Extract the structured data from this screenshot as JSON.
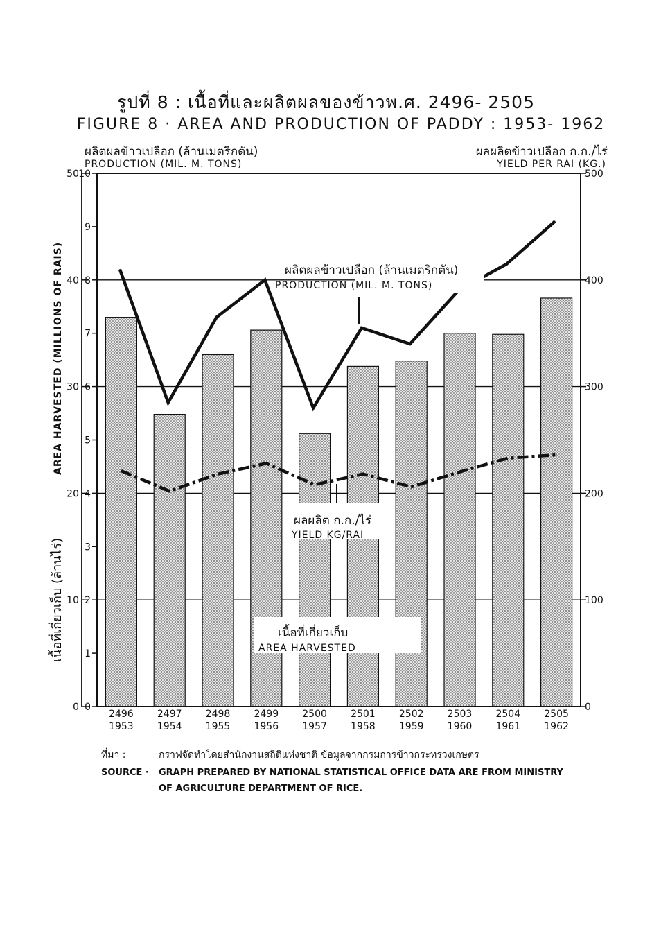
{
  "chart_data": {
    "type": "bar",
    "title": "รูปที่ 8 : เนื้อที่และผลิตผลของข้าวพ.ศ. 2496- 2505",
    "subtitle": "FIGURE 8 · AREA AND PRODUCTION OF PADDY : 1953- 1962",
    "categories": [
      {
        "be": "2496",
        "ad": "1953"
      },
      {
        "be": "2497",
        "ad": "1954"
      },
      {
        "be": "2498",
        "ad": "1955"
      },
      {
        "be": "2499",
        "ad": "1956"
      },
      {
        "be": "2500",
        "ad": "1957"
      },
      {
        "be": "2501",
        "ad": "1958"
      },
      {
        "be": "2502",
        "ad": "1959"
      },
      {
        "be": "2503",
        "ad": "1960"
      },
      {
        "be": "2504",
        "ad": "1961"
      },
      {
        "be": "2505",
        "ad": "1962"
      }
    ],
    "left_axis_area": {
      "label_th": "เนื้อที่เกี่ยวเก็บ (ล้านไร่)",
      "label_en": "AREA HARVESTED (MILLIONS OF RAIS)",
      "ylim": [
        0,
        50
      ],
      "ticks": [
        "0",
        "10",
        "20",
        "30",
        "40",
        "50"
      ]
    },
    "left_axis_production": {
      "label_th": "ผลิตผลข้าวเปลือก (ล้านเมตริกตัน)",
      "label_en": "PRODUCTION (MIL. M. TONS)",
      "ylim": [
        0,
        10
      ],
      "ticks": [
        "0",
        "1",
        "2",
        "3",
        "4",
        "5",
        "6",
        "7",
        "8",
        "9",
        "10"
      ]
    },
    "right_axis_yield": {
      "label_th": "ผลผลิตข้าวเปลือก ก.ก./ไร่",
      "label_en": "YIELD PER RAI (KG.)",
      "ylim": [
        0,
        500
      ],
      "ticks": [
        "0",
        "100",
        "200",
        "300",
        "400",
        "500"
      ]
    },
    "series": [
      {
        "name": "เนื้อที่เกี่ยวเก็บ",
        "name_en": "AREA HARVESTED",
        "kind": "bar",
        "axis": "area",
        "values": [
          36.5,
          27.4,
          33.0,
          35.3,
          25.6,
          31.9,
          32.4,
          35.0,
          34.9,
          38.3
        ]
      },
      {
        "name": "ผลิตผลข้าวเปลือก (ล้านเมตริกตัน)",
        "name_en": "PRODUCTION (MIL. M. TONS)",
        "kind": "line",
        "axis": "production",
        "values": [
          8.2,
          5.7,
          7.3,
          8.0,
          5.6,
          7.1,
          6.8,
          7.8,
          8.3,
          9.1
        ]
      },
      {
        "name": "ผลผลิต ก.ก./ไร่",
        "name_en": "YIELD KG/RAI",
        "kind": "line-dashdot",
        "axis": "yield",
        "values": [
          221,
          202,
          218,
          228,
          208,
          218,
          206,
          220,
          233,
          236
        ]
      }
    ],
    "grid": "horizontal at 1, 2, 3, 4 (10, 20, 30, 40)"
  },
  "source": {
    "label_th": "ที่มา :",
    "text_th": "กราฟจัดทำโดยสำนักงานสถิติแห่งชาติ ข้อมูลจากกรมการข้าวกระทรวงเกษตร",
    "label_en": "SOURCE ·",
    "text_en_1": "GRAPH PREPARED BY NATIONAL STATISTICAL OFFICE  DATA ARE FROM MINISTRY",
    "text_en_2": "OF AGRICULTURE DEPARTMENT OF RICE."
  },
  "colors": {
    "bar_fill": "#c8c8c8",
    "ink": "#111111"
  }
}
